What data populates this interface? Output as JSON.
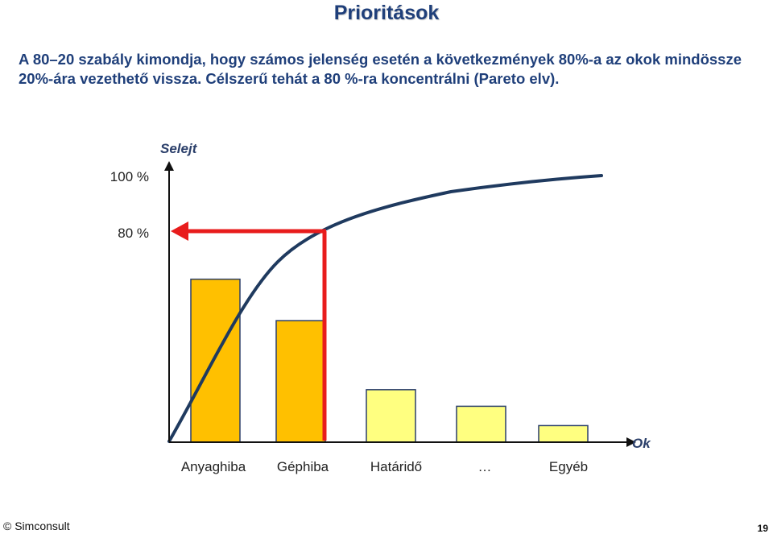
{
  "title": "Prioritások",
  "text": "A 80–20 szabály kimondja, hogy számos jelenség esetén a következmények 80%-a az okok mindössze 20%-ára vezethető vissza. Célszerű tehát a 80 %-ra koncentrálni (Pareto elv).",
  "footer": {
    "copyright": "© Simconsult",
    "page_number": "19"
  },
  "colors": {
    "text_blue": "#1f3f7a",
    "curve": "#1f3a5f",
    "arrow": "#e81c1c",
    "bar_dark": "#ffc000",
    "bar_light": "#ffff80"
  },
  "chart_data": {
    "type": "bar",
    "ylabel": "Selejt",
    "xlabel": "Ok",
    "yticks": [
      "100 %",
      "80 %"
    ],
    "categories": [
      "Anyaghiba",
      "Géphiba",
      "Határidő",
      "…",
      "Egyéb"
    ],
    "values": [
      59,
      44,
      19,
      13,
      6
    ],
    "bar_colors": [
      "#ffc000",
      "#ffc000",
      "#ffff80",
      "#ffff80",
      "#ffff80"
    ],
    "cumulative_curve": [
      0,
      80,
      92,
      97,
      100
    ],
    "marker": {
      "level": "80 %",
      "style": "red arrow from curve to y-axis"
    },
    "ylim": [
      0,
      100
    ]
  }
}
